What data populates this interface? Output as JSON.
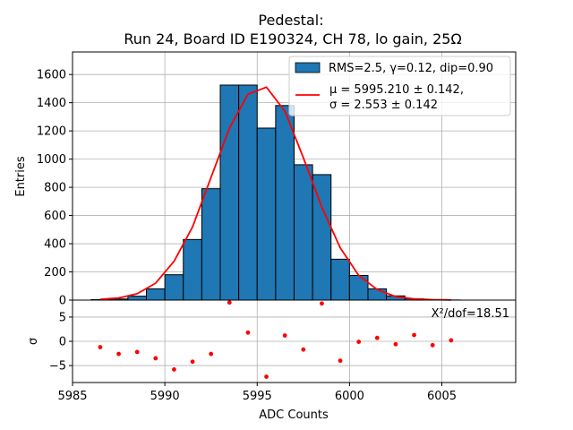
{
  "chart_data": [
    {
      "panel": "main",
      "type": "bar",
      "title_line1": "Pedestal:",
      "title_line2": "Run 24, Board ID E190324, CH 78, lo gain, 25Ω",
      "xlabel": "",
      "ylabel": "Entries",
      "xlim": [
        5985,
        6009
      ],
      "ylim": [
        0,
        1760
      ],
      "yticks": [
        0,
        200,
        400,
        600,
        800,
        1000,
        1200,
        1400,
        1600
      ],
      "xticks": [
        5985,
        5990,
        5995,
        6000,
        6005
      ],
      "grid": true,
      "histogram": {
        "legend": "RMS=2.5, γ=0.12, dip=0.90",
        "color": "#1f77b4",
        "bin_edges": [
          5986,
          5987,
          5988,
          5989,
          5990,
          5991,
          5992,
          5993,
          5994,
          5995,
          5996,
          5997,
          5998,
          5999,
          6000,
          6001,
          6002,
          6003,
          6004,
          6005,
          6006,
          6007,
          6008
        ],
        "counts": [
          3,
          8,
          28,
          80,
          180,
          430,
          790,
          1525,
          1525,
          1220,
          1380,
          960,
          890,
          290,
          175,
          80,
          30,
          10,
          3,
          1,
          0,
          0
        ]
      },
      "fit": {
        "legend_line1": "μ = 5995.210 ± 0.142,",
        "legend_line2": "σ = 2.553 ± 0.142",
        "color": "#ff0000",
        "x": [
          5986.5,
          5987.5,
          5988.5,
          5989.5,
          5990.5,
          5991.5,
          5992.5,
          5993.5,
          5994.5,
          5995.5,
          5996.5,
          5997.5,
          5998.5,
          5999.5,
          6000.5,
          6001.5,
          6002.5,
          6003.5,
          6004.5,
          6005.5
        ],
        "y": [
          5,
          15,
          45,
          120,
          275,
          520,
          870,
          1220,
          1460,
          1510,
          1340,
          1010,
          660,
          370,
          175,
          75,
          25,
          8,
          3,
          1
        ]
      }
    },
    {
      "panel": "residuals",
      "type": "scatter",
      "xlabel": "ADC Counts",
      "ylabel": "σ",
      "xlim": [
        5985,
        6009
      ],
      "ylim": [
        -8.5,
        8.5
      ],
      "yticks": [
        -5,
        0,
        5
      ],
      "xticks": [
        5985,
        5990,
        5995,
        6000,
        6005
      ],
      "grid": true,
      "annotation": "X²/dof=18.51",
      "color": "#ff0000",
      "x": [
        5986.5,
        5987.5,
        5988.5,
        5989.5,
        5990.5,
        5991.5,
        5992.5,
        5993.5,
        5994.5,
        5995.5,
        5996.5,
        5997.5,
        5998.5,
        5999.5,
        6000.5,
        6001.5,
        6002.5,
        6003.5,
        6004.5,
        6005.5
      ],
      "y": [
        -1.2,
        -2.6,
        -2.2,
        -3.5,
        -5.8,
        -4.2,
        -2.6,
        8.0,
        1.8,
        -7.3,
        1.2,
        -1.7,
        7.8,
        -4.0,
        -0.1,
        0.7,
        -0.6,
        1.3,
        -0.8,
        0.2
      ]
    }
  ]
}
